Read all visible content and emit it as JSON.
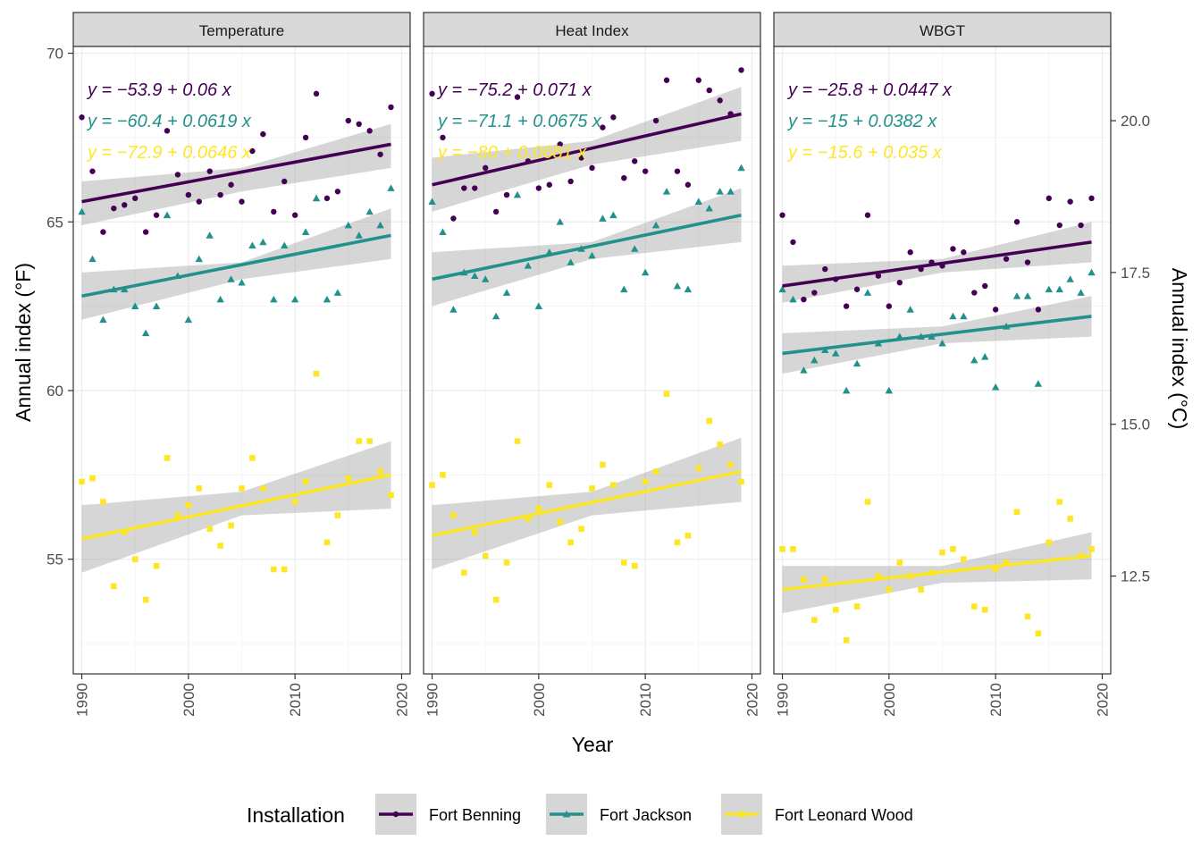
{
  "chart_data": {
    "type": "scatter",
    "panels": [
      {
        "title": "Temperature",
        "equations": [
          "y = −53.9 + 0.06 x",
          "y = −60.4 + 0.0619 x",
          "y = −72.9 + 0.0646 x"
        ],
        "series": [
          {
            "name": "Fort Benning",
            "x": [
              1990,
              1991,
              1992,
              1993,
              1994,
              1995,
              1996,
              1997,
              1998,
              1999,
              2000,
              2001,
              2002,
              2003,
              2004,
              2005,
              2006,
              2007,
              2008,
              2009,
              2010,
              2011,
              2012,
              2013,
              2014,
              2015,
              2016,
              2017,
              2018,
              2019
            ],
            "y": [
              68.1,
              66.5,
              64.7,
              65.4,
              65.5,
              65.7,
              64.7,
              65.2,
              67.7,
              66.4,
              65.8,
              65.6,
              66.5,
              65.8,
              66.1,
              65.6,
              67.1,
              67.6,
              65.3,
              66.2,
              65.2,
              67.5,
              68.8,
              65.7,
              65.9,
              68.0,
              67.9,
              67.7,
              67.0,
              68.4
            ],
            "fit": [
              [
                1990,
                65.6
              ],
              [
                2019,
                67.3
              ]
            ],
            "band": [
              [
                1990,
                64.9,
                66.2
              ],
              [
                2005,
                65.9,
                66.6
              ],
              [
                2019,
                66.6,
                67.9
              ]
            ]
          },
          {
            "name": "Fort Jackson",
            "x": [
              1990,
              1991,
              1992,
              1993,
              1994,
              1995,
              1996,
              1997,
              1998,
              1999,
              2000,
              2001,
              2002,
              2003,
              2004,
              2005,
              2006,
              2007,
              2008,
              2009,
              2010,
              2011,
              2012,
              2013,
              2014,
              2015,
              2016,
              2017,
              2018,
              2019
            ],
            "y": [
              65.3,
              63.9,
              62.1,
              63.0,
              63.0,
              62.5,
              61.7,
              62.5,
              65.2,
              63.4,
              62.1,
              63.9,
              64.6,
              62.7,
              63.3,
              63.2,
              64.3,
              64.4,
              62.7,
              64.3,
              62.7,
              64.7,
              65.7,
              62.7,
              62.9,
              64.9,
              64.6,
              65.3,
              64.9,
              66.0
            ],
            "fit": [
              [
                1990,
                62.8
              ],
              [
                2019,
                64.6
              ]
            ],
            "band": [
              [
                1990,
                62.1,
                63.5
              ],
              [
                2005,
                63.3,
                63.8
              ],
              [
                2019,
                63.9,
                65.4
              ]
            ]
          },
          {
            "name": "Fort Leonard Wood",
            "x": [
              1990,
              1991,
              1992,
              1993,
              1994,
              1995,
              1996,
              1997,
              1998,
              1999,
              2000,
              2001,
              2002,
              2003,
              2004,
              2005,
              2006,
              2007,
              2008,
              2009,
              2010,
              2011,
              2012,
              2013,
              2014,
              2015,
              2016,
              2017,
              2018,
              2019
            ],
            "y": [
              57.3,
              57.4,
              56.7,
              54.2,
              55.8,
              55.0,
              53.8,
              54.8,
              58.0,
              56.3,
              56.6,
              57.1,
              55.9,
              55.4,
              56.0,
              57.1,
              58.0,
              57.1,
              54.7,
              54.7,
              56.7,
              57.3,
              60.5,
              55.5,
              56.3,
              57.4,
              58.5,
              58.5,
              57.6,
              56.9
            ],
            "fit": [
              [
                1990,
                55.6
              ],
              [
                2019,
                57.5
              ]
            ],
            "band": [
              [
                1990,
                54.6,
                56.6
              ],
              [
                2005,
                56.3,
                57.0
              ],
              [
                2019,
                56.5,
                58.5
              ]
            ]
          }
        ]
      },
      {
        "title": "Heat Index",
        "equations": [
          "y = −75.2 + 0.071 x",
          "y = −71.1 + 0.0675 x",
          "y = −80 + 0.0681 x"
        ],
        "series": [
          {
            "name": "Fort Benning",
            "x": [
              1990,
              1991,
              1992,
              1993,
              1994,
              1995,
              1996,
              1997,
              1998,
              1999,
              2000,
              2001,
              2002,
              2003,
              2004,
              2005,
              2006,
              2007,
              2008,
              2009,
              2010,
              2011,
              2012,
              2013,
              2014,
              2015,
              2016,
              2017,
              2018,
              2019
            ],
            "y": [
              68.8,
              67.5,
              65.1,
              66.0,
              66.0,
              66.6,
              65.3,
              65.8,
              68.7,
              66.8,
              66.0,
              66.1,
              67.3,
              66.2,
              66.9,
              66.6,
              67.8,
              68.1,
              66.3,
              66.8,
              66.5,
              68.0,
              69.2,
              66.5,
              66.1,
              69.2,
              68.9,
              68.6,
              68.2,
              69.5
            ],
            "fit": [
              [
                1990,
                66.1
              ],
              [
                2019,
                68.2
              ]
            ],
            "band": [
              [
                1990,
                65.3,
                66.9
              ],
              [
                2005,
                66.7,
                67.4
              ],
              [
                2019,
                67.4,
                69.0
              ]
            ]
          },
          {
            "name": "Fort Jackson",
            "x": [
              1990,
              1991,
              1992,
              1993,
              1994,
              1995,
              1996,
              1997,
              1998,
              1999,
              2000,
              2001,
              2002,
              2003,
              2004,
              2005,
              2006,
              2007,
              2008,
              2009,
              2010,
              2011,
              2012,
              2013,
              2014,
              2015,
              2016,
              2017,
              2018,
              2019
            ],
            "y": [
              65.6,
              64.7,
              62.4,
              63.5,
              63.4,
              63.3,
              62.2,
              62.9,
              65.8,
              63.7,
              62.5,
              64.1,
              65.0,
              63.8,
              64.2,
              64.0,
              65.1,
              65.2,
              63.0,
              64.2,
              63.5,
              64.9,
              65.9,
              63.1,
              63.0,
              65.6,
              65.4,
              65.9,
              65.9,
              66.6
            ],
            "fit": [
              [
                1990,
                63.3
              ],
              [
                2019,
                65.2
              ]
            ],
            "band": [
              [
                1990,
                62.5,
                64.1
              ],
              [
                2005,
                63.9,
                64.4
              ],
              [
                2019,
                64.4,
                66.0
              ]
            ]
          },
          {
            "name": "Fort Leonard Wood",
            "x": [
              1990,
              1991,
              1992,
              1993,
              1994,
              1995,
              1996,
              1997,
              1998,
              1999,
              2000,
              2001,
              2002,
              2003,
              2004,
              2005,
              2006,
              2007,
              2008,
              2009,
              2010,
              2011,
              2012,
              2013,
              2014,
              2015,
              2016,
              2017,
              2018,
              2019
            ],
            "y": [
              57.2,
              57.5,
              56.3,
              54.6,
              55.8,
              55.1,
              53.8,
              54.9,
              58.5,
              56.2,
              56.5,
              57.2,
              56.1,
              55.5,
              55.9,
              57.1,
              57.8,
              57.2,
              54.9,
              54.8,
              57.3,
              57.6,
              59.9,
              55.5,
              55.7,
              57.7,
              59.1,
              58.4,
              57.8,
              57.3
            ],
            "fit": [
              [
                1990,
                55.7
              ],
              [
                2019,
                57.6
              ]
            ],
            "band": [
              [
                1990,
                54.7,
                56.6
              ],
              [
                2005,
                56.3,
                57.0
              ],
              [
                2019,
                56.7,
                58.6
              ]
            ]
          }
        ]
      },
      {
        "title": "WBGT",
        "equations": [
          "y = −25.8 + 0.0447 x",
          "y = −15 + 0.0382 x",
          "y = −15.6 + 0.035 x"
        ],
        "series": [
          {
            "name": "Fort Benning",
            "x": [
              1990,
              1991,
              1992,
              1993,
              1994,
              1995,
              1996,
              1997,
              1998,
              1999,
              2000,
              2001,
              2002,
              2003,
              2004,
              2005,
              2006,
              2007,
              2008,
              2009,
              2010,
              2011,
              2012,
              2013,
              2014,
              2015,
              2016,
              2017,
              2018,
              2019
            ],
            "y": [
              65.2,
              64.4,
              62.7,
              62.9,
              63.6,
              63.3,
              62.5,
              63.0,
              65.2,
              63.4,
              62.5,
              63.2,
              64.1,
              63.6,
              63.8,
              63.7,
              64.2,
              64.1,
              62.9,
              63.1,
              62.4,
              63.9,
              65.0,
              63.8,
              62.4,
              65.7,
              64.9,
              65.6,
              64.9,
              65.7
            ],
            "fit": [
              [
                1990,
                63.1
              ],
              [
                2019,
                64.4
              ]
            ],
            "band": [
              [
                1990,
                62.6,
                63.7
              ],
              [
                2005,
                63.5,
                63.9
              ],
              [
                2019,
                63.8,
                65.0
              ]
            ]
          },
          {
            "name": "Fort Jackson",
            "x": [
              1990,
              1991,
              1992,
              1993,
              1994,
              1995,
              1996,
              1997,
              1998,
              1999,
              2000,
              2001,
              2002,
              2003,
              2004,
              2005,
              2006,
              2007,
              2008,
              2009,
              2010,
              2011,
              2012,
              2013,
              2014,
              2015,
              2016,
              2017,
              2018,
              2019
            ],
            "y": [
              63.0,
              62.7,
              60.6,
              60.9,
              61.2,
              61.1,
              60.0,
              60.8,
              62.9,
              61.4,
              60.0,
              61.6,
              62.4,
              61.6,
              61.6,
              61.4,
              62.2,
              62.2,
              60.9,
              61.0,
              60.1,
              61.9,
              62.8,
              62.8,
              60.2,
              63.0,
              63.0,
              63.3,
              62.9,
              63.5
            ],
            "fit": [
              [
                1990,
                61.1
              ],
              [
                2019,
                62.2
              ]
            ],
            "band": [
              [
                1990,
                60.5,
                61.7
              ],
              [
                2005,
                61.4,
                61.9
              ],
              [
                2019,
                61.6,
                62.8
              ]
            ]
          },
          {
            "name": "Fort Leonard Wood",
            "x": [
              1990,
              1991,
              1992,
              1993,
              1994,
              1995,
              1996,
              1997,
              1998,
              1999,
              2000,
              2001,
              2002,
              2003,
              2004,
              2005,
              2006,
              2007,
              2008,
              2009,
              2010,
              2011,
              2012,
              2013,
              2014,
              2015,
              2016,
              2017,
              2018,
              2019
            ],
            "y": [
              55.3,
              55.3,
              54.4,
              53.2,
              54.4,
              53.5,
              52.6,
              53.6,
              56.7,
              54.5,
              54.1,
              54.9,
              54.5,
              54.1,
              54.6,
              55.2,
              55.3,
              55.0,
              53.6,
              53.5,
              54.7,
              54.9,
              56.4,
              53.3,
              52.8,
              55.5,
              56.7,
              56.2,
              55.1,
              55.3
            ],
            "fit": [
              [
                1990,
                54.1
              ],
              [
                2019,
                55.1
              ]
            ],
            "band": [
              [
                1990,
                53.4,
                54.8
              ],
              [
                2005,
                54.3,
                54.8
              ],
              [
                2019,
                54.4,
                55.8
              ]
            ]
          }
        ]
      }
    ],
    "xlabel": "Year",
    "ylabel": "Annual index (°F)",
    "ylabel_right": "Annual index (°C)",
    "x_ticks": [
      1990,
      2000,
      2010,
      2020
    ],
    "y_ticks": [
      55,
      60,
      65,
      70
    ],
    "y_ticks_right": [
      12.5,
      15.0,
      17.5,
      20.0
    ],
    "xlim": [
      1989.2,
      2020.8
    ],
    "ylim": [
      51.6,
      70.2
    ],
    "legend_title": "Installation",
    "legend_position": "bottom",
    "grid": true,
    "colors": {
      "Fort Benning": "#440154",
      "Fort Jackson": "#21918c",
      "Fort Leonard Wood": "#fde725"
    },
    "markers": {
      "Fort Benning": "circle",
      "Fort Jackson": "triangle",
      "Fort Leonard Wood": "square"
    }
  }
}
